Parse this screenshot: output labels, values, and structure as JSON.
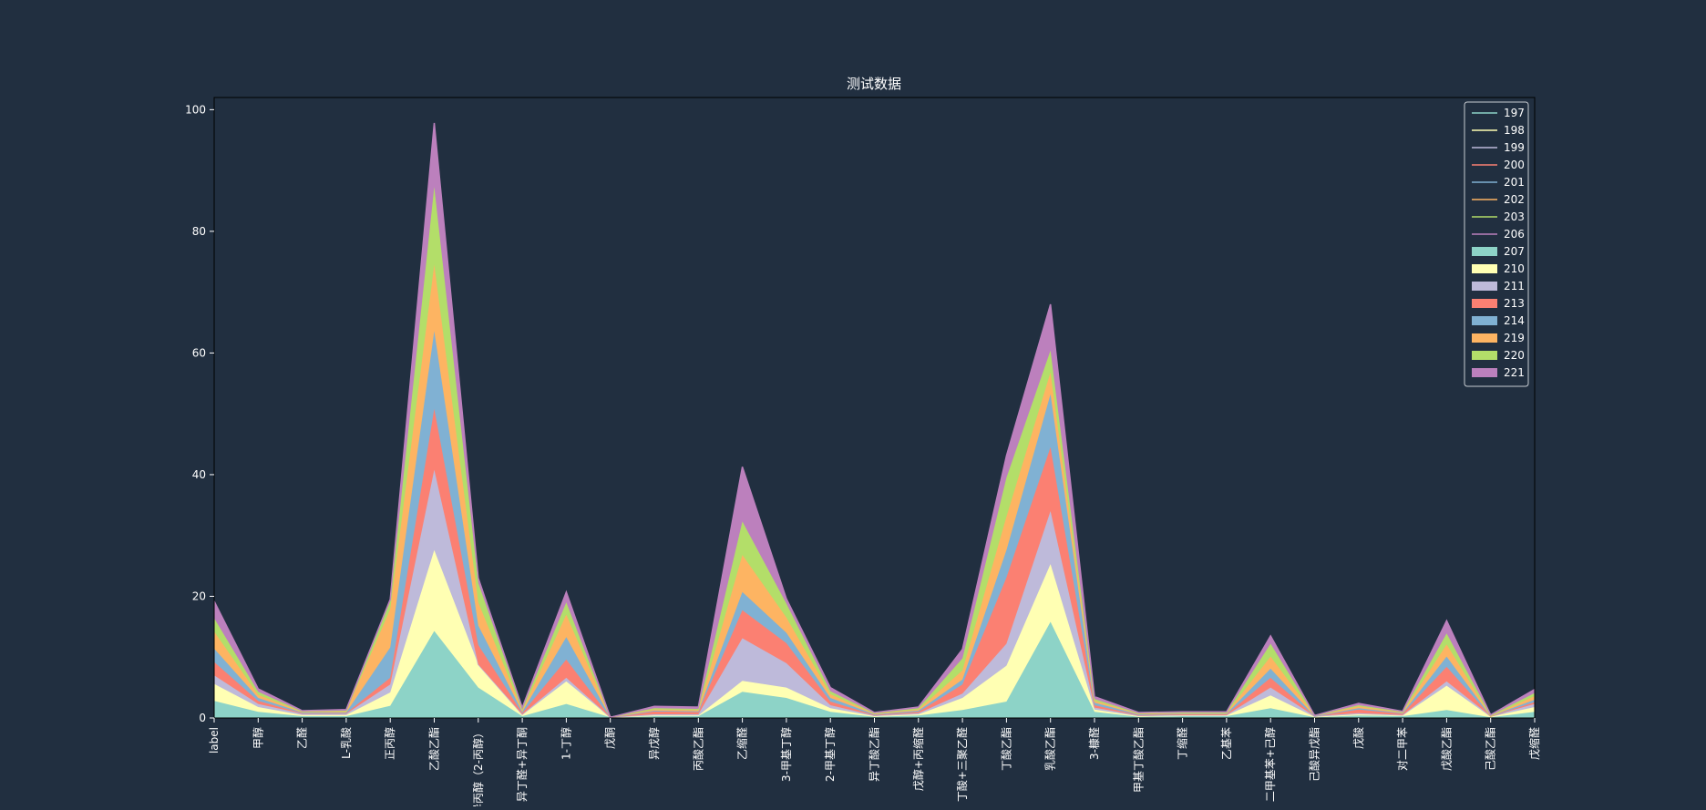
{
  "chart_data": {
    "type": "area",
    "stacked": true,
    "title": "测试数据",
    "xlabel": "",
    "ylabel": "",
    "ylim": [
      0,
      102
    ],
    "yticks": [
      0,
      20,
      40,
      60,
      80,
      100
    ],
    "legend_position": "top-right",
    "categories": [
      "label",
      "甲醇",
      "乙醛",
      "L-乳酸",
      "正丙醇",
      "乙酸乙酯",
      "异丙醇（2-丙醇）",
      "异丁醛+异丁酮",
      "1-丁醇",
      "戊酮",
      "异戊醇",
      "丙酸乙酯",
      "乙缩醛",
      "3-甲基丁醇",
      "2-甲基丁醇",
      "异丁酸乙酯",
      "戊醇+丙缩醛",
      "丁酸+三聚乙醛",
      "丁酸乙酯",
      "乳酸乙酯",
      "3-糠醛",
      "甲基丁酸乙酯",
      "丁缩醛",
      "乙基苯",
      "二甲基苯+己醇",
      "己酸异戊酯",
      "戊酸",
      "对二甲苯",
      "戊酸乙酯",
      "己酸乙酯",
      "戊缩醛"
    ],
    "line_series": [
      {
        "name": "197",
        "color": "#8dd3c7"
      },
      {
        "name": "198",
        "color": "#ffffb3"
      },
      {
        "name": "199",
        "color": "#bebada"
      },
      {
        "name": "200",
        "color": "#fb8072"
      },
      {
        "name": "201",
        "color": "#80b1d3"
      },
      {
        "name": "202",
        "color": "#fdb462"
      },
      {
        "name": "203",
        "color": "#b3de69"
      },
      {
        "name": "206",
        "color": "#bc80bd"
      }
    ],
    "series": [
      {
        "name": "207",
        "color": "#8dd3c7",
        "values": [
          2.8,
          1.0,
          0.3,
          0.3,
          2.0,
          14.3,
          5.0,
          0.3,
          2.3,
          0.1,
          0.3,
          0.3,
          4.3,
          3.3,
          1.0,
          0.2,
          0.4,
          1.3,
          2.7,
          15.8,
          1.0,
          0.2,
          0.3,
          0.3,
          1.6,
          0.1,
          0.4,
          0.3,
          1.3,
          0.1,
          1.0
        ]
      },
      {
        "name": "210",
        "color": "#ffffb3",
        "values": [
          2.8,
          0.8,
          0.2,
          0.2,
          2.2,
          13.3,
          3.8,
          0.2,
          3.7,
          0.0,
          0.1,
          0.1,
          1.8,
          1.7,
          0.6,
          0.1,
          0.2,
          2.0,
          5.9,
          9.5,
          0.4,
          0.1,
          0.1,
          0.1,
          2.1,
          0.1,
          0.2,
          0.1,
          4.0,
          0.1,
          0.8
        ]
      },
      {
        "name": "211",
        "color": "#bebada",
        "values": [
          1.4,
          0.5,
          0.2,
          0.2,
          1.3,
          13.2,
          0.0,
          0.1,
          0.6,
          0.0,
          0.2,
          0.2,
          7.0,
          4.0,
          0.5,
          0.1,
          0.2,
          0.7,
          3.6,
          8.7,
          0.3,
          0.1,
          0.1,
          0.1,
          1.3,
          0.1,
          0.2,
          0.1,
          0.7,
          0.1,
          0.5
        ]
      },
      {
        "name": "213",
        "color": "#fb8072",
        "values": [
          2.2,
          0.5,
          0.1,
          0.1,
          1.1,
          10.0,
          3.2,
          0.2,
          3.0,
          0.0,
          0.5,
          0.4,
          4.6,
          3.3,
          0.6,
          0.1,
          0.2,
          1.5,
          10.9,
          10.5,
          0.4,
          0.1,
          0.1,
          0.1,
          1.6,
          0.0,
          0.6,
          0.2,
          2.4,
          0.0,
          0.3
        ]
      },
      {
        "name": "214",
        "color": "#80b1d3",
        "values": [
          2.2,
          0.5,
          0.1,
          0.1,
          5.0,
          12.8,
          3.2,
          0.2,
          3.7,
          0.0,
          0.1,
          0.1,
          3.0,
          1.7,
          0.6,
          0.1,
          0.2,
          0.8,
          4.5,
          8.7,
          0.4,
          0.1,
          0.1,
          0.1,
          1.5,
          0.0,
          0.2,
          0.1,
          1.7,
          0.0,
          0.4
        ]
      },
      {
        "name": "219",
        "color": "#fdb462",
        "values": [
          2.8,
          0.5,
          0.1,
          0.2,
          6.3,
          10.9,
          3.8,
          0.2,
          3.7,
          0.0,
          0.2,
          0.2,
          6.1,
          2.5,
          0.6,
          0.1,
          0.2,
          1.5,
          5.5,
          3.6,
          0.3,
          0.1,
          0.1,
          0.1,
          2.0,
          0.1,
          0.3,
          0.1,
          2.0,
          0.0,
          0.6
        ]
      },
      {
        "name": "220",
        "color": "#b3de69",
        "values": [
          2.2,
          0.5,
          0.1,
          0.1,
          1.3,
          12.8,
          3.2,
          0.3,
          2.0,
          0.0,
          0.2,
          0.2,
          5.5,
          2.3,
          0.5,
          0.1,
          0.2,
          2.0,
          6.4,
          3.6,
          0.3,
          0.1,
          0.1,
          0.1,
          2.1,
          0.0,
          0.2,
          0.1,
          1.8,
          0.1,
          0.5
        ]
      },
      {
        "name": "221",
        "color": "#bc80bd",
        "values": [
          2.8,
          0.5,
          0.1,
          0.2,
          0.3,
          10.5,
          0.8,
          0.2,
          1.7,
          0.0,
          0.3,
          0.3,
          9.0,
          0.8,
          0.6,
          0.1,
          0.2,
          1.5,
          3.6,
          7.6,
          0.4,
          0.1,
          0.1,
          0.1,
          1.3,
          0.0,
          0.3,
          0.1,
          2.1,
          0.1,
          0.6
        ]
      }
    ]
  }
}
